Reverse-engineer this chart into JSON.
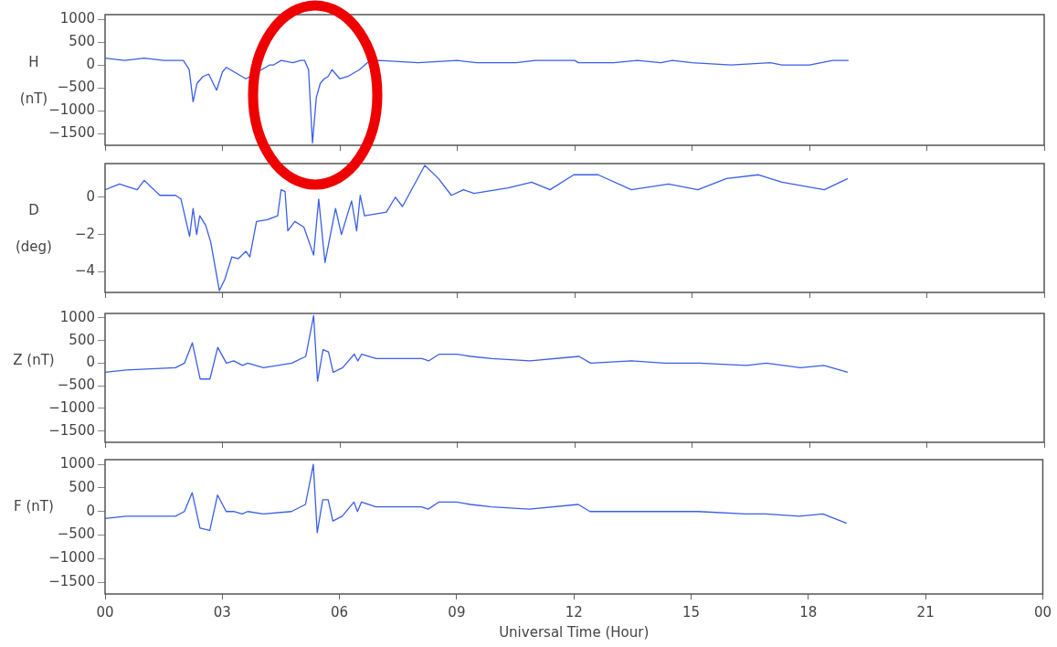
{
  "chart_data": [
    {
      "type": "line",
      "ylabel": "H (nT)",
      "color": "#3a5ee8",
      "xlim": [
        0,
        24
      ],
      "xticks": [
        {
          "value": 0,
          "label": null
        },
        {
          "value": 3,
          "label": null
        },
        {
          "value": 6,
          "label": null
        },
        {
          "value": 9,
          "label": null
        },
        {
          "value": 12,
          "label": null
        },
        {
          "value": 15,
          "label": null
        },
        {
          "value": 18,
          "label": null
        },
        {
          "value": 21,
          "label": null
        },
        {
          "value": 24,
          "label": null
        }
      ],
      "ylim": [
        -1750,
        1100
      ],
      "yticks": [
        -1500,
        -1000,
        -500,
        0,
        500,
        1000
      ],
      "tick_labels": "y",
      "x": [
        0,
        0.5,
        1.0,
        1.5,
        2.0,
        2.15,
        2.25,
        2.35,
        2.5,
        2.65,
        2.85,
        3.0,
        3.1,
        3.3,
        3.6,
        4.0,
        4.2,
        4.3,
        4.5,
        4.8,
        5.0,
        5.1,
        5.2,
        5.3,
        5.4,
        5.5,
        5.6,
        5.7,
        5.8,
        5.9,
        6.0,
        6.2,
        6.5,
        6.7,
        7.0,
        8.0,
        9.0,
        9.5,
        10.0,
        10.5,
        11.0,
        12.0,
        12.1,
        13.0,
        13.6,
        14.2,
        14.5,
        15.0,
        16.0,
        17.0,
        17.3,
        17.8,
        18.0,
        18.6,
        19.0
      ],
      "values": [
        150,
        100,
        150,
        100,
        100,
        -100,
        -800,
        -400,
        -250,
        -200,
        -550,
        -150,
        -50,
        -150,
        -300,
        -100,
        0,
        0,
        100,
        50,
        100,
        100,
        -100,
        -1700,
        -700,
        -400,
        -300,
        -250,
        -100,
        -200,
        -300,
        -250,
        -100,
        50,
        100,
        50,
        100,
        50,
        50,
        50,
        100,
        100,
        50,
        50,
        100,
        50,
        100,
        50,
        0,
        50,
        0,
        0,
        0,
        100,
        100
      ]
    },
    {
      "type": "line",
      "ylabel": "D (deg)",
      "color": "#3a5ee8",
      "xlim": [
        0,
        24
      ],
      "xticks": [
        {
          "value": 0,
          "label": null
        },
        {
          "value": 3,
          "label": null
        },
        {
          "value": 6,
          "label": null
        },
        {
          "value": 9,
          "label": null
        },
        {
          "value": 12,
          "label": null
        },
        {
          "value": 15,
          "label": null
        },
        {
          "value": 18,
          "label": null
        },
        {
          "value": 21,
          "label": null
        },
        {
          "value": 24,
          "label": null
        }
      ],
      "ylim": [
        -5.1,
        1.8
      ],
      "yticks": [
        -4,
        -2,
        0
      ],
      "tick_labels": "y",
      "x": [
        0,
        0.37,
        0.82,
        1.0,
        1.4,
        1.8,
        1.94,
        2.16,
        2.25,
        2.34,
        2.42,
        2.57,
        2.7,
        2.92,
        3.06,
        3.24,
        3.4,
        3.6,
        3.7,
        3.87,
        4.15,
        4.41,
        4.5,
        4.6,
        4.67,
        4.85,
        5.08,
        5.33,
        5.46,
        5.62,
        5.89,
        6.04,
        6.3,
        6.43,
        6.52,
        6.63,
        7.19,
        7.42,
        7.6,
        8.17,
        8.52,
        8.85,
        9.16,
        9.43,
        10.3,
        10.9,
        11.37,
        11.98,
        12.6,
        13.45,
        14.4,
        15.15,
        15.88,
        16.7,
        17.3,
        18.38,
        18.98
      ],
      "values": [
        0.4,
        0.7,
        0.4,
        0.9,
        0.1,
        0.1,
        -0.1,
        -2.1,
        -0.6,
        -2.0,
        -1.0,
        -1.5,
        -2.4,
        -5.0,
        -4.4,
        -3.2,
        -3.3,
        -2.9,
        -3.2,
        -1.3,
        -1.2,
        -1.0,
        0.4,
        0.3,
        -1.8,
        -1.3,
        -1.6,
        -3.1,
        -0.1,
        -3.5,
        -0.6,
        -2.0,
        -0.2,
        -1.8,
        0.1,
        -1.0,
        -0.8,
        0.0,
        -0.5,
        1.7,
        1.0,
        0.1,
        0.4,
        0.2,
        0.5,
        0.8,
        0.4,
        1.2,
        1.2,
        0.4,
        0.7,
        0.4,
        1.0,
        1.2,
        0.8,
        0.4,
        1.0
      ]
    },
    {
      "type": "line",
      "ylabel": "Z (nT)",
      "color": "#3a5ee8",
      "xlim": [
        0,
        24
      ],
      "xticks": [
        {
          "value": 0,
          "label": null
        },
        {
          "value": 3,
          "label": null
        },
        {
          "value": 6,
          "label": null
        },
        {
          "value": 9,
          "label": null
        },
        {
          "value": 12,
          "label": null
        },
        {
          "value": 15,
          "label": null
        },
        {
          "value": 18,
          "label": null
        },
        {
          "value": 21,
          "label": null
        },
        {
          "value": 24,
          "label": null
        }
      ],
      "ylim": [
        -1750,
        1100
      ],
      "yticks": [
        -1500,
        -1000,
        -500,
        0,
        500,
        1000
      ],
      "tick_labels": "y",
      "x": [
        0,
        0.54,
        1.8,
        2.03,
        2.23,
        2.43,
        2.68,
        2.88,
        3.1,
        3.29,
        3.51,
        3.65,
        4.05,
        4.77,
        5.13,
        5.33,
        5.43,
        5.57,
        5.71,
        5.83,
        6.07,
        6.37,
        6.46,
        6.56,
        6.93,
        8.1,
        8.27,
        8.54,
        8.99,
        9.35,
        9.88,
        10.86,
        12.11,
        12.41,
        13.45,
        14.31,
        15.18,
        16.39,
        16.9,
        17.77,
        18.37,
        18.98
      ],
      "values": [
        -200,
        -150,
        -100,
        0,
        450,
        -350,
        -350,
        350,
        0,
        50,
        -50,
        0,
        -100,
        0,
        150,
        1050,
        -400,
        300,
        250,
        -200,
        -100,
        200,
        50,
        200,
        100,
        100,
        50,
        200,
        200,
        150,
        100,
        50,
        150,
        0,
        50,
        0,
        0,
        -50,
        0,
        -100,
        -50,
        -200
      ]
    },
    {
      "type": "line",
      "ylabel": "F (nT)",
      "xlabel": "Universal Time (Hour)",
      "color": "#3a5ee8",
      "xlim": [
        0,
        24
      ],
      "xticks": [
        {
          "value": 0,
          "label": "00"
        },
        {
          "value": 3,
          "label": "03"
        },
        {
          "value": 6,
          "label": "06"
        },
        {
          "value": 9,
          "label": "09"
        },
        {
          "value": 12,
          "label": "12"
        },
        {
          "value": 15,
          "label": "15"
        },
        {
          "value": 18,
          "label": "18"
        },
        {
          "value": 21,
          "label": "21"
        },
        {
          "value": 24,
          "label": "00"
        }
      ],
      "ylim": [
        -1750,
        1100
      ],
      "yticks": [
        -1500,
        -1000,
        -500,
        0,
        500,
        1000
      ],
      "x": [
        0,
        0.54,
        1.8,
        2.03,
        2.23,
        2.43,
        2.68,
        2.88,
        3.1,
        3.29,
        3.51,
        3.65,
        4.05,
        4.77,
        5.13,
        5.33,
        5.43,
        5.57,
        5.71,
        5.83,
        6.07,
        6.37,
        6.46,
        6.56,
        6.93,
        8.1,
        8.27,
        8.54,
        8.99,
        9.35,
        9.88,
        10.86,
        12.11,
        12.41,
        13.45,
        14.31,
        15.18,
        16.39,
        16.9,
        17.77,
        18.37,
        18.98
      ],
      "values": [
        -150,
        -100,
        -100,
        0,
        400,
        -350,
        -400,
        350,
        0,
        0,
        -50,
        0,
        -50,
        0,
        150,
        1000,
        -450,
        250,
        250,
        -200,
        -100,
        200,
        0,
        200,
        100,
        100,
        50,
        200,
        200,
        150,
        100,
        50,
        150,
        0,
        0,
        0,
        0,
        -50,
        -50,
        -100,
        -50,
        -250
      ]
    }
  ]
}
